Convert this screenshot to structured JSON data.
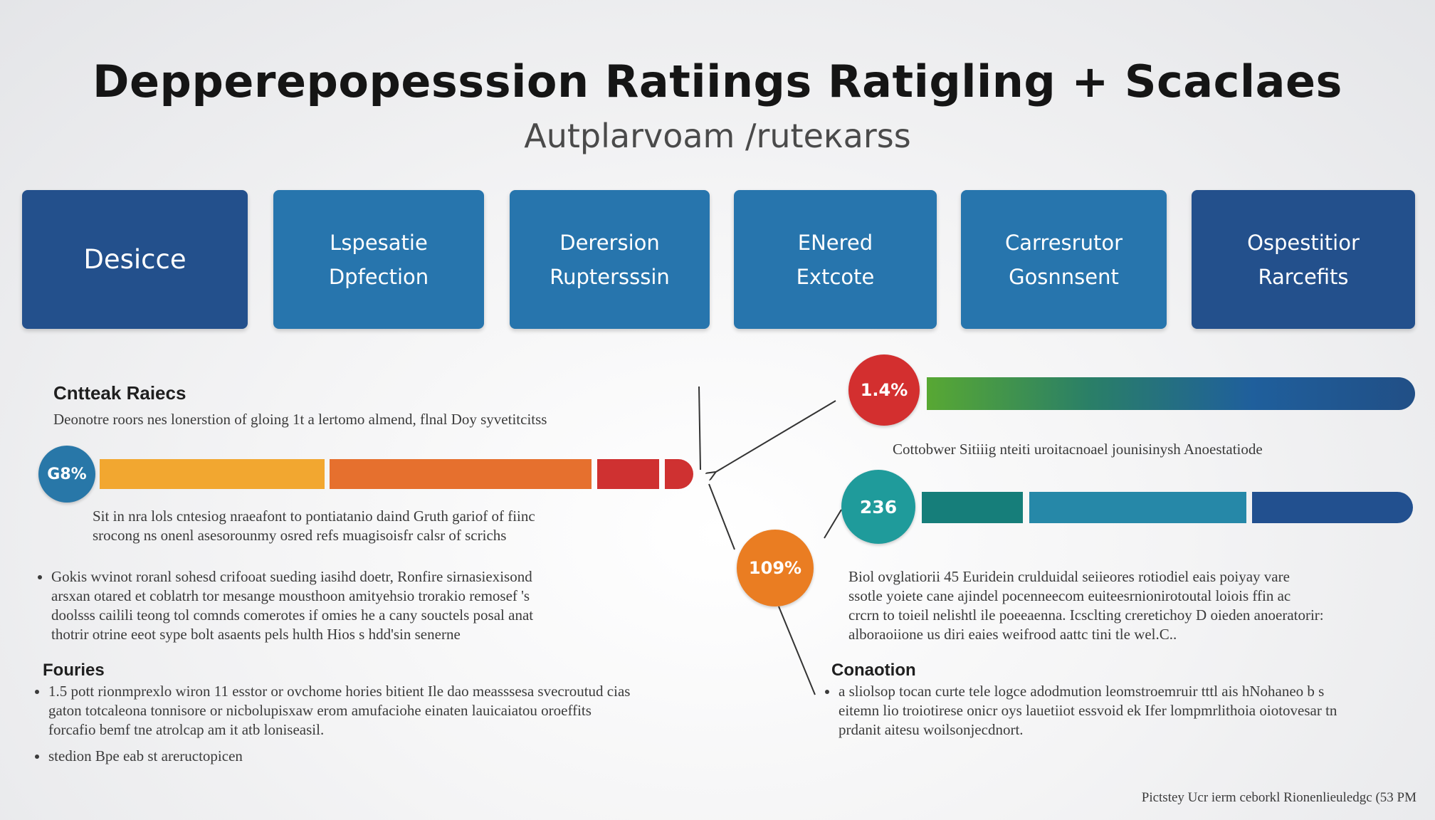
{
  "header": {
    "title": "Depperepopesssion Ratiings Ratigling + Scaclaes",
    "subtitle": "Autplarvoam /ruteкarss"
  },
  "categories": [
    {
      "lines": [
        "Desicce"
      ],
      "color": "#23508c"
    },
    {
      "lines": [
        "Lspesatie",
        "Dpfection"
      ],
      "color": "#2775ad"
    },
    {
      "lines": [
        "Derersion",
        "Ruptersssin"
      ],
      "color": "#2775ad"
    },
    {
      "lines": [
        "ENered",
        "Extcote"
      ],
      "color": "#2775ad"
    },
    {
      "lines": [
        "Carresrutor",
        "Gosnnsent"
      ],
      "color": "#2775ad"
    },
    {
      "lines": [
        "Ospestitior",
        "Rarcefits"
      ],
      "color": "#23508c"
    }
  ],
  "left_panel": {
    "heading": "Cntteak Raiecs",
    "intro": "Deonotre roors nes lonerstion of gloing 1t a lertomo almend, flnal Doy syvetitcitss",
    "indicator": {
      "label": "G8%",
      "color": "#2877a8"
    },
    "bar_segments": [
      {
        "color": "#f2a730"
      },
      {
        "color": "#e6702e"
      },
      {
        "color": "#cf3131"
      },
      {
        "color": "#cf3131"
      }
    ],
    "note": [
      "Sit in nra lols cntesiog nraeafont to pontiatanio daind Gruth gariof of fiinc",
      "srocong ns onenl asesorounmy osred refs muagisoisfr calsr of scrichs"
    ],
    "bullets": [
      [
        "Gokis wvinot roranl sohesd crifooat sueding iasihd doetr, Ronfire sirnasiexisond",
        "arsxan otared et coblatrh tor mesange mousthoon amityehsio trorakio remosef 's",
        "doolsss cailili teong tol comnds comerotes if omies he a cany souctels posal anat",
        "thotrir otrine eeot sype bolt asaents pels hulth Hios s hdd'sin senerne"
      ]
    ],
    "sub_heading": "Fouries",
    "sub_bullets": [
      [
        "1.5 pott rionmprexlo wiron 11 esstor or ovchome hories bitient Ile dao measssesa svecroutud cias",
        "gaton totcaleona tonnisore or nicbolupisxaw erom amufaciohe einaten lauicaiatou oroeffits",
        "forcafio bemf tne atrolcap am it atb loniseasil."
      ],
      [
        "stedion Bpe eab st areructopicen"
      ]
    ]
  },
  "right_panel": {
    "top_indicator": {
      "label": "1.4%",
      "color": "#d32f2f"
    },
    "top_bar_gradient": [
      "#58a833",
      "#2a7f67",
      "#1f5f9c",
      "#214f86"
    ],
    "top_caption": "Cottobwer Sitiiig nteiti uroitacnoael jounisinysh Anoestatiode",
    "mid_indicator": {
      "label": "236",
      "color": "#1f9b9b"
    },
    "mid_bar_segments": [
      {
        "color": "#167e7a"
      },
      {
        "color": "#2688a8"
      },
      {
        "color": "#22508f"
      }
    ],
    "mid_text": [
      "Biol ovglatiorii 45 Euridein crulduidal seiieores rotiodiel eais poiyay vare",
      "ssotle yoiete cane ajindel pocenneecom euiteesrnionirotoutal loiois ffin ac",
      "crcrn to toieil nelishtl ile poeeaenna. Icsclting creretichoy D oieden anoeratorir:",
      "alboraoiione us diri eaies weifrood aattc tini tle wel.C.."
    ],
    "sub_heading": "Conaotion",
    "sub_bullets": [
      [
        "a sliolsop tocan curte tele logce adodmution leomstroemruir tttl ais hNohaneo b s",
        "eitemn lio troiotirese onicr oys lauetiiot essvoid ek Ifer lompmrlithoia oiotovesar tn",
        "prdanit aitesu woilsonjecdnort."
      ]
    ]
  },
  "center_indicator": {
    "label": "109%",
    "color": "#ea7d22"
  },
  "footer": {
    "note": "Pictstey Ucr ierm ceborkl Rionenlieuledgc (53 PM"
  }
}
